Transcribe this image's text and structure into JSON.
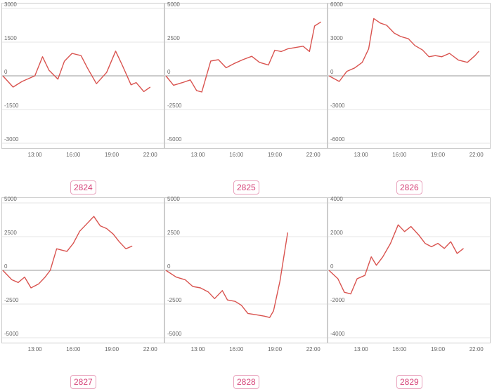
{
  "colors": {
    "line": "#d9534f",
    "zero_line": "#999999",
    "grid": "#e6e6e6",
    "tick_text": "#666666",
    "badge_text": "#d6457a",
    "badge_border": "#e9a3bd"
  },
  "chart_data": [
    {
      "type": "line",
      "badge": "2824",
      "yticks": [
        3000,
        1500,
        0,
        -1500,
        -3000
      ],
      "ylim": [
        -3000,
        3000
      ],
      "xticks": [
        "13:00",
        "16:00",
        "19:00",
        "22:00"
      ],
      "xlim": [
        10.5,
        23
      ],
      "x": [
        10.5,
        11.3,
        12.0,
        13.0,
        13.6,
        14.1,
        14.8,
        15.3,
        15.9,
        16.6,
        17.1,
        17.8,
        18.6,
        19.3,
        19.8,
        20.5,
        20.9,
        21.5,
        22.0
      ],
      "values": [
        0,
        -500,
        -250,
        0,
        850,
        250,
        -150,
        650,
        1000,
        900,
        350,
        -350,
        150,
        1100,
        500,
        -400,
        -300,
        -700,
        -500
      ]
    },
    {
      "type": "line",
      "badge": "2825",
      "yticks": [
        5000,
        2500,
        0,
        -2500,
        -5000
      ],
      "ylim": [
        -5000,
        5000
      ],
      "xticks": [
        "13:00",
        "16:00",
        "19:00",
        "22:00"
      ],
      "xlim": [
        10.5,
        23
      ],
      "x": [
        10.5,
        11.1,
        11.8,
        12.4,
        12.9,
        13.3,
        14.0,
        14.6,
        15.2,
        15.8,
        16.5,
        17.2,
        17.8,
        18.5,
        19.0,
        19.5,
        20.0,
        20.6,
        21.2,
        21.7,
        22.1,
        22.6
      ],
      "values": [
        0,
        -700,
        -500,
        -300,
        -1100,
        -1200,
        1100,
        1200,
        600,
        900,
        1200,
        1450,
        1000,
        800,
        1900,
        1800,
        2000,
        2100,
        2200,
        1800,
        3700,
        4000
      ]
    },
    {
      "type": "line",
      "badge": "2826",
      "yticks": [
        6000,
        3000,
        0,
        -3000,
        -6000
      ],
      "ylim": [
        -6000,
        6000
      ],
      "xticks": [
        "13:00",
        "16:00",
        "19:00",
        "22:00"
      ],
      "xlim": [
        10.5,
        23
      ],
      "x": [
        10.5,
        11.3,
        11.9,
        12.5,
        13.1,
        13.6,
        14.0,
        14.5,
        15.0,
        15.6,
        16.1,
        16.7,
        17.2,
        17.8,
        18.3,
        18.8,
        19.3,
        19.9,
        20.6,
        21.3,
        21.9,
        22.2
      ],
      "values": [
        0,
        -500,
        400,
        700,
        1200,
        2400,
        5100,
        4700,
        4500,
        3800,
        3500,
        3300,
        2700,
        2300,
        1700,
        1800,
        1700,
        2000,
        1400,
        1200,
        1800,
        2200
      ]
    },
    {
      "type": "line",
      "badge": "2827",
      "yticks": [
        5000,
        2500,
        0,
        -2500,
        -5000
      ],
      "ylim": [
        -5000,
        5000
      ],
      "xticks": [
        "13:00",
        "16:00",
        "19:00",
        "22:00"
      ],
      "xlim": [
        10.5,
        23
      ],
      "x": [
        10.5,
        11.2,
        11.7,
        12.2,
        12.7,
        13.3,
        13.8,
        14.2,
        14.7,
        15.5,
        16.0,
        16.5,
        17.1,
        17.6,
        18.1,
        18.6,
        19.1,
        19.6,
        20.1,
        20.6
      ],
      "values": [
        0,
        -700,
        -900,
        -500,
        -1300,
        -1000,
        -500,
        0,
        1600,
        1400,
        2000,
        2900,
        3500,
        4000,
        3300,
        3100,
        2700,
        2100,
        1600,
        1800
      ]
    },
    {
      "type": "line",
      "badge": "2828",
      "yticks": [
        5000,
        2500,
        0,
        -2500,
        -5000
      ],
      "ylim": [
        -5000,
        5000
      ],
      "xticks": [
        "13:00",
        "16:00",
        "19:00",
        "22:00"
      ],
      "xlim": [
        10.5,
        23
      ],
      "x": [
        10.5,
        11.3,
        12.0,
        12.6,
        13.2,
        13.8,
        14.3,
        14.9,
        15.3,
        15.9,
        16.4,
        16.9,
        17.6,
        18.2,
        18.6,
        18.9,
        19.4,
        20.0
      ],
      "values": [
        0,
        -500,
        -700,
        -1200,
        -1300,
        -1600,
        -2100,
        -1500,
        -2200,
        -2300,
        -2600,
        -3200,
        -3300,
        -3400,
        -3500,
        -3000,
        -800,
        2800
      ]
    },
    {
      "type": "line",
      "badge": "2829",
      "yticks": [
        4000,
        2000,
        0,
        -2000,
        -4000
      ],
      "ylim": [
        -4000,
        4000
      ],
      "xticks": [
        "13:00",
        "16:00",
        "19:00",
        "22:00"
      ],
      "xlim": [
        10.5,
        23
      ],
      "x": [
        10.5,
        11.2,
        11.7,
        12.2,
        12.7,
        13.3,
        13.8,
        14.2,
        14.7,
        15.3,
        15.9,
        16.4,
        16.9,
        17.5,
        18.0,
        18.5,
        19.0,
        19.5,
        20.0,
        20.5,
        21.0
      ],
      "values": [
        0,
        -500,
        -1300,
        -1400,
        -500,
        -300,
        800,
        300,
        800,
        1600,
        2700,
        2300,
        2600,
        2100,
        1600,
        1400,
        1600,
        1300,
        1700,
        1000,
        1300
      ]
    }
  ]
}
